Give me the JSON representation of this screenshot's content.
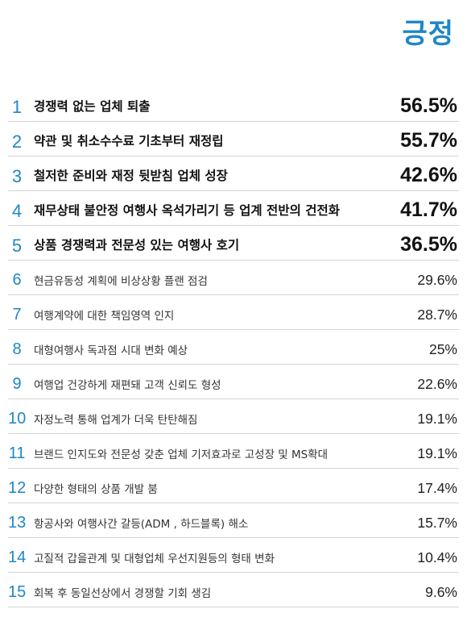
{
  "title": "긍정",
  "chart_data": {
    "type": "table",
    "title": "긍정",
    "rows": [
      {
        "rank": "1",
        "label": "경쟁력 없는 업체 퇴출",
        "value": "56.5%"
      },
      {
        "rank": "2",
        "label": "약관 및 취소수수료 기초부터 재정립",
        "value": "55.7%"
      },
      {
        "rank": "3",
        "label": "철저한 준비와 재정 뒷받침 업체 성장",
        "value": "42.6%"
      },
      {
        "rank": "4",
        "label": "재무상태 불안정 여행사 옥석가리기 등 업계 전반의 건전화",
        "value": "41.7%"
      },
      {
        "rank": "5",
        "label": "상품 경쟁력과 전문성 있는 여행사 호기",
        "value": "36.5%"
      },
      {
        "rank": "6",
        "label": "현금유동성 계획에 비상상황 플랜 점검",
        "value": "29.6%"
      },
      {
        "rank": "7",
        "label": "여행계약에 대한 책임영역 인지",
        "value": "28.7%"
      },
      {
        "rank": "8",
        "label": "대형여행사 독과점 시대 변화 예상",
        "value": "25%"
      },
      {
        "rank": "9",
        "label": "여행업 건강하게 재편돼 고객 신뢰도 형성",
        "value": "22.6%"
      },
      {
        "rank": "10",
        "label": "자정노력 통해 업계가 더욱 탄탄해짐",
        "value": "19.1%"
      },
      {
        "rank": "11",
        "label": "브랜드 인지도와 전문성 갖춘 업체 기저효과로 고성장 및 MS확대",
        "value": "19.1%"
      },
      {
        "rank": "12",
        "label": "다양한 형태의 상품 개발 붐",
        "value": "17.4%"
      },
      {
        "rank": "13",
        "label": "항공사와 여행사간 갈등(ADM , 하드블록) 해소",
        "value": "15.7%"
      },
      {
        "rank": "14",
        "label": "고질적 갑을관계 및 대형업체 우선지원등의 형태 변화",
        "value": "10.4%"
      },
      {
        "rank": "15",
        "label": "회복 후 동일선상에서 경쟁할 기회 생김",
        "value": "9.6%"
      }
    ]
  },
  "colors": {
    "accent": "#1e86c8",
    "divider": "#d4d4d4",
    "text": "#111111"
  }
}
